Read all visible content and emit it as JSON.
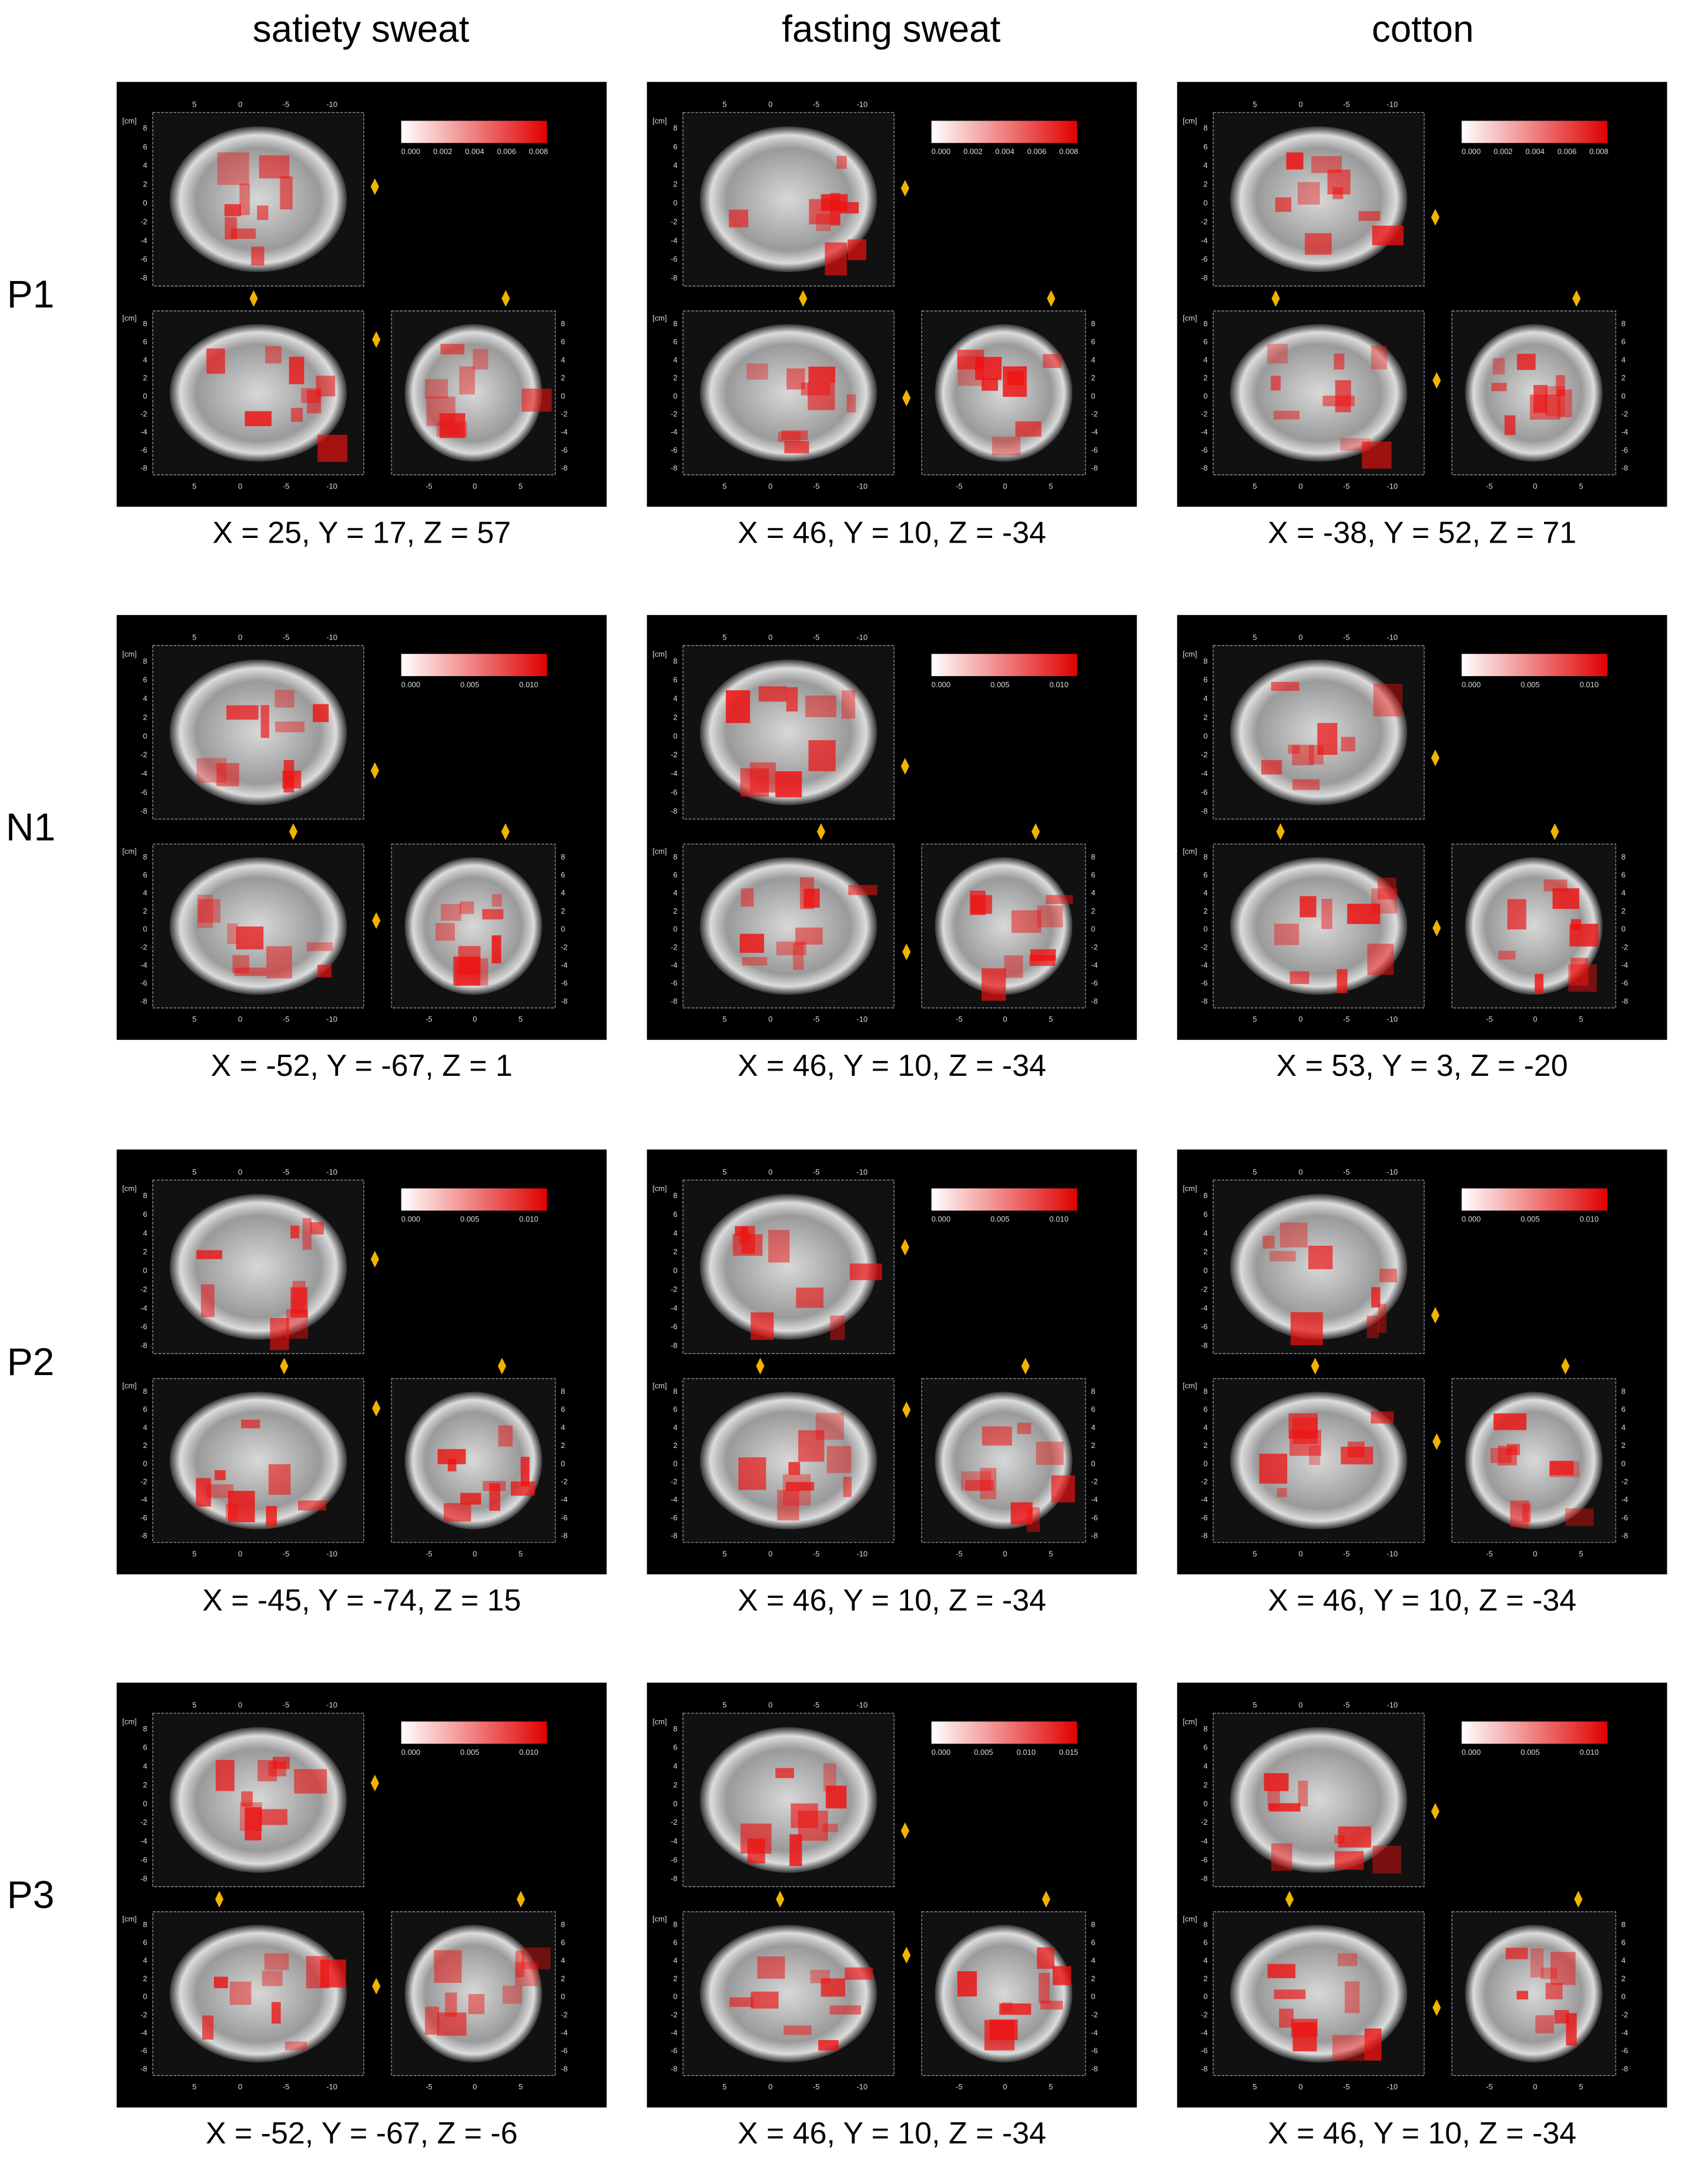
{
  "columns": [
    "satiety sweat",
    "fasting sweat",
    "cotton"
  ],
  "viewer": {
    "unit": "[cm]",
    "axial_x_ticks": [
      "5",
      "0",
      "-5",
      "-10"
    ],
    "axial_y_ticks": [
      "8",
      "6",
      "4",
      "2",
      "0",
      "-2",
      "-4",
      "-6",
      "-8"
    ],
    "coronal_x_ticks": [
      "-5",
      "0",
      "5"
    ]
  },
  "rows": [
    {
      "label": "P1",
      "panels": [
        {
          "colorbar": [
            "0.000",
            "0.002",
            "0.004",
            "0.006",
            "0.008"
          ],
          "caption": "X = 25, Y = 17, Z = 57"
        },
        {
          "colorbar": [
            "0.000",
            "0.002",
            "0.004",
            "0.006",
            "0.008"
          ],
          "caption": "X = 46, Y = 10, Z = -34"
        },
        {
          "colorbar": [
            "0.000",
            "0.002",
            "0.004",
            "0.006",
            "0.008"
          ],
          "caption": "X = -38, Y = 52, Z = 71"
        }
      ]
    },
    {
      "label": "N1",
      "panels": [
        {
          "colorbar": [
            "0.000",
            "0.005",
            "0.010"
          ],
          "caption": "X = -52, Y = -67, Z = 1"
        },
        {
          "colorbar": [
            "0.000",
            "0.005",
            "0.010"
          ],
          "caption": "X = 46, Y = 10, Z = -34"
        },
        {
          "colorbar": [
            "0.000",
            "0.005",
            "0.010"
          ],
          "caption": "X = 53, Y = 3, Z = -20"
        }
      ]
    },
    {
      "label": "P2",
      "panels": [
        {
          "colorbar": [
            "0.000",
            "0.005",
            "0.010"
          ],
          "caption": "X = -45, Y = -74, Z = 15"
        },
        {
          "colorbar": [
            "0.000",
            "0.005",
            "0.010"
          ],
          "caption": "X = 46, Y = 10, Z = -34"
        },
        {
          "colorbar": [
            "0.000",
            "0.005",
            "0.010"
          ],
          "caption": "X = 46, Y = 10, Z = -34"
        }
      ]
    },
    {
      "label": "P3",
      "panels": [
        {
          "colorbar": [
            "0.000",
            "0.005",
            "0.010"
          ],
          "caption": "X = -52, Y = -67, Z = -6"
        },
        {
          "colorbar": [
            "0.000",
            "0.005",
            "0.010",
            "0.015"
          ],
          "caption": "X = 46, Y = 10, Z = -34"
        },
        {
          "colorbar": [
            "0.000",
            "0.005",
            "0.010"
          ],
          "caption": "X = 46, Y = 10, Z = -34"
        }
      ]
    }
  ]
}
